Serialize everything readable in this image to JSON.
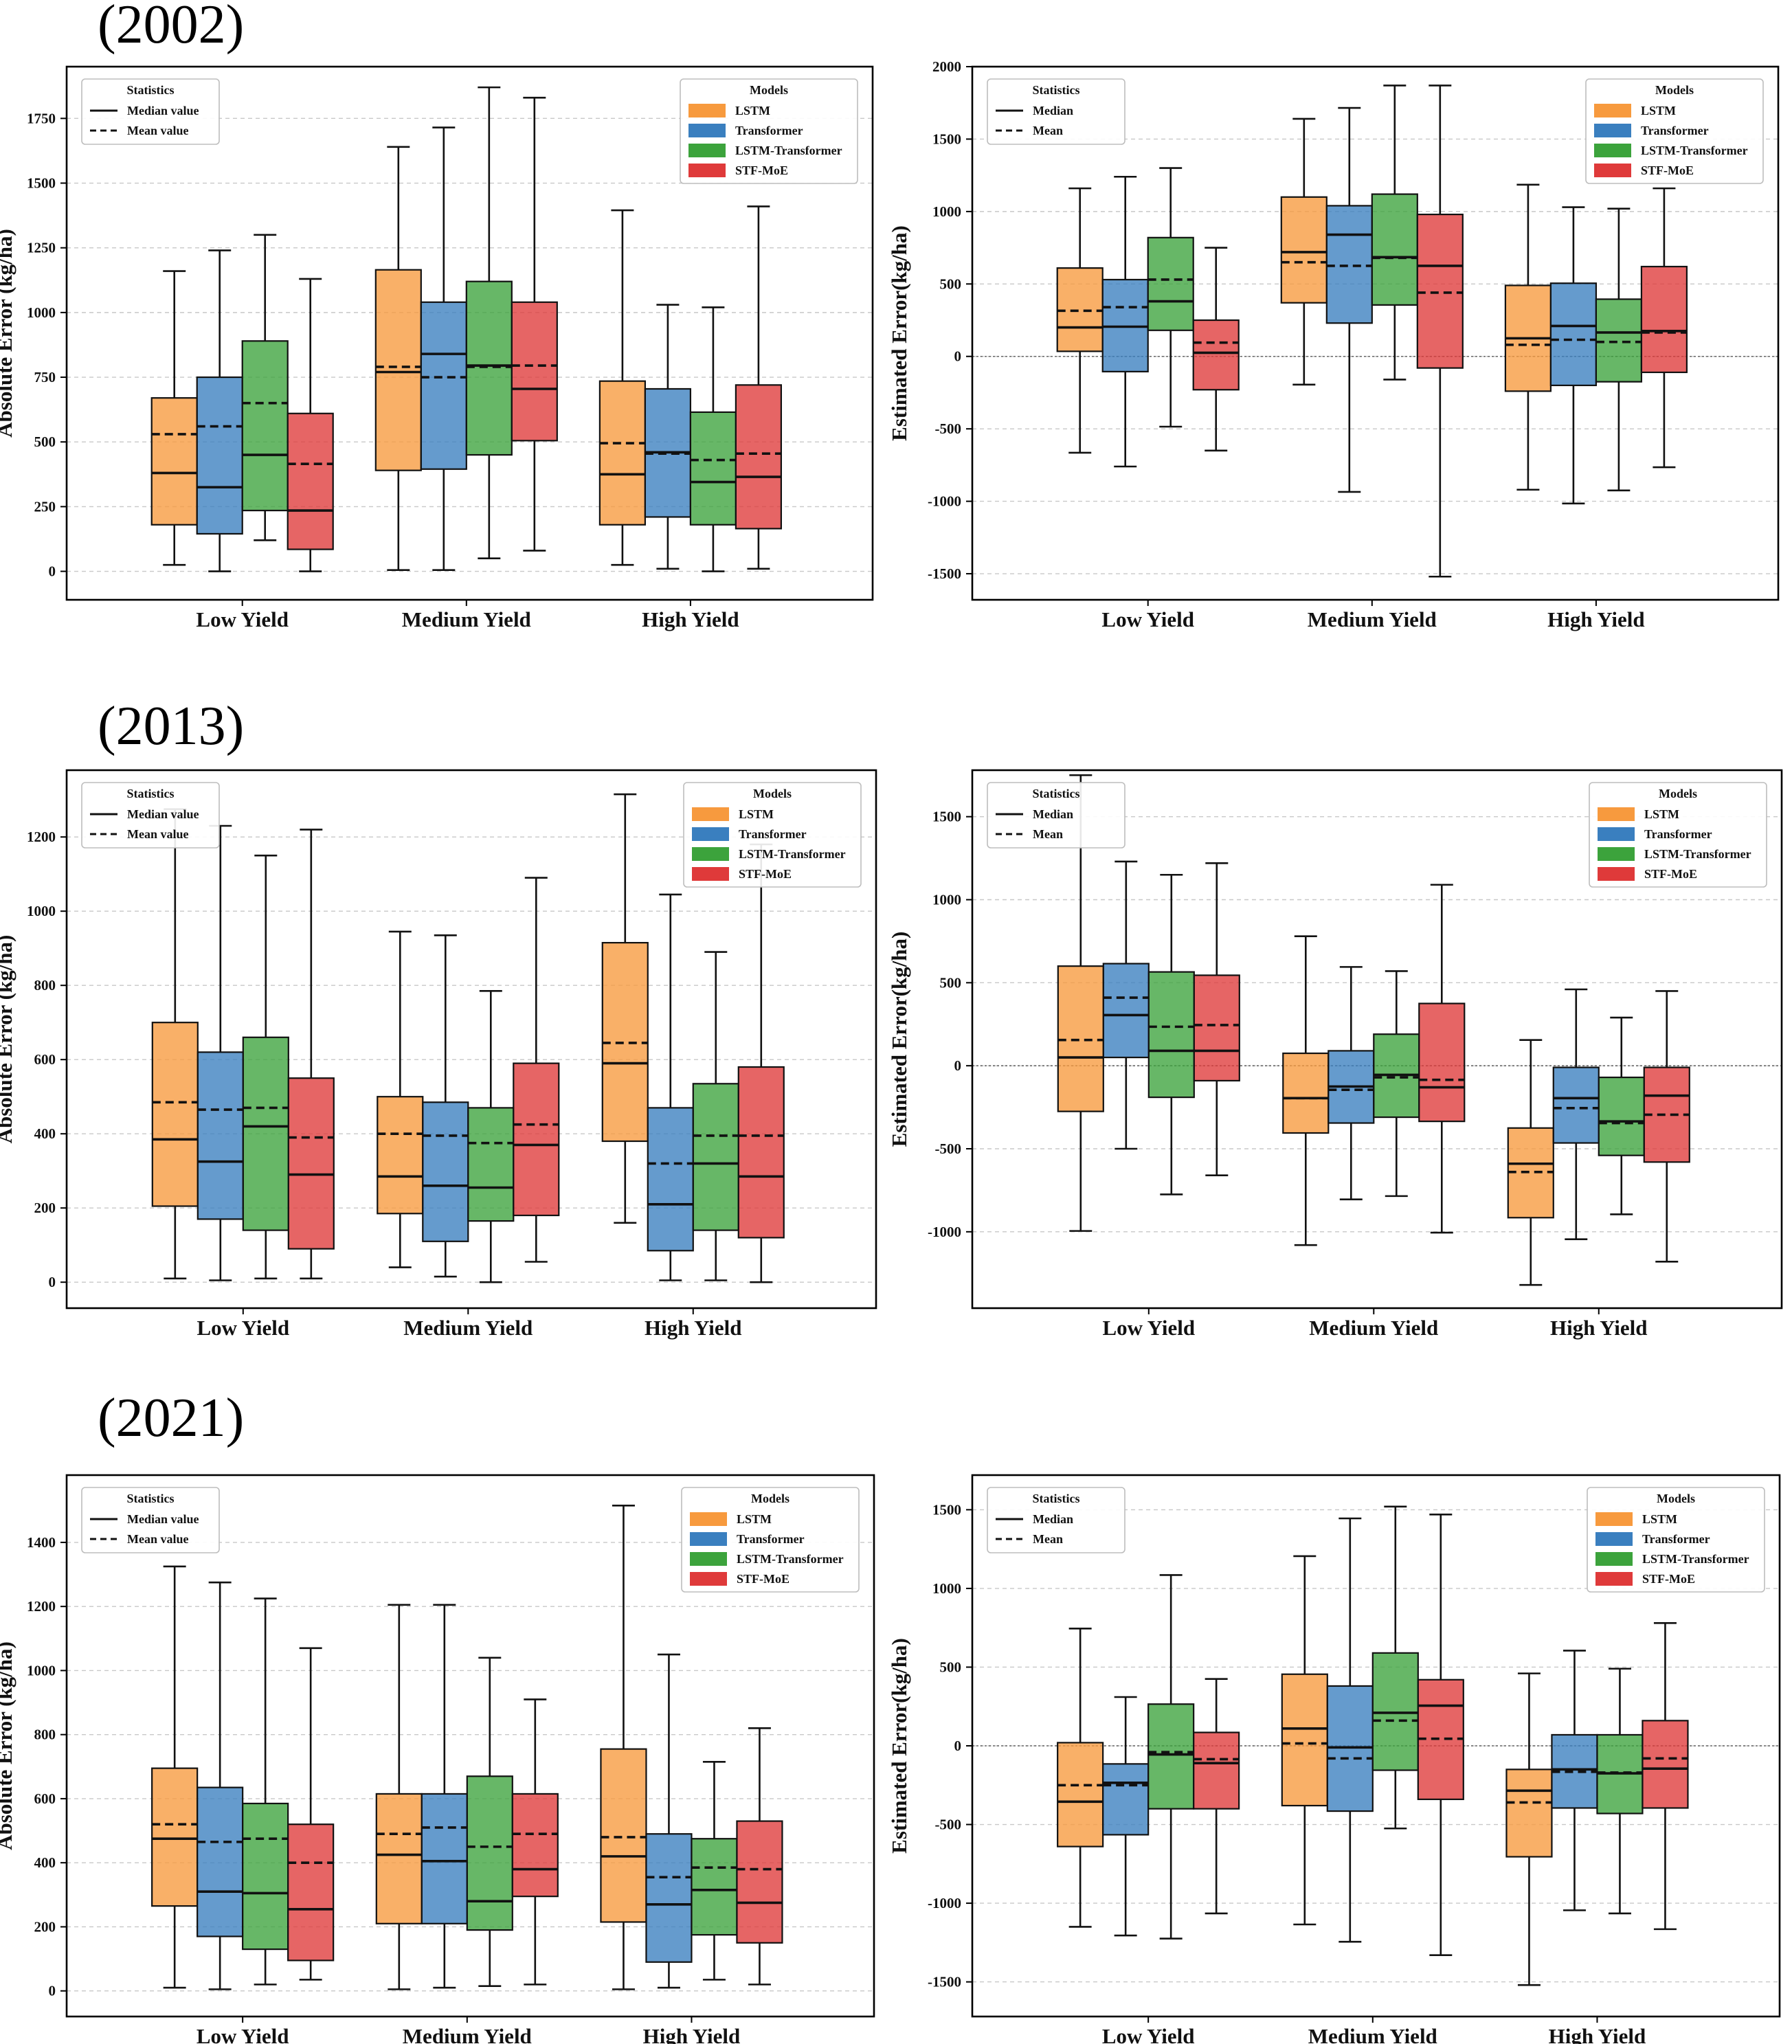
{
  "figure": {
    "legend_titles": {
      "statistics": "Statistics",
      "models": "Models"
    },
    "statistics_labels_abs": [
      "Median value",
      "Mean value"
    ],
    "statistics_labels_est": [
      "Median",
      "Mean"
    ],
    "colors": {
      "LSTM": "#f79a3e",
      "Transformer": "#3a7fbf",
      "LSTM-Transformer": "#3ca33c",
      "STF-MoE": "#df3a3a"
    },
    "models": [
      "LSTM",
      "Transformer",
      "LSTM-Transformer",
      "STF-MoE"
    ],
    "categories": [
      "Low Yield",
      "Medium Yield",
      "High Yield"
    ]
  },
  "years": [
    "(2002)",
    "(2013)",
    "(2021)"
  ],
  "chart_data": [
    {
      "type": "box",
      "year": "(2002)",
      "ylabel": "Absolute Error (kg/ha)",
      "ylim": [
        -110,
        1950
      ],
      "yticks": [
        0,
        250,
        500,
        750,
        1000,
        1250,
        1500,
        1750
      ],
      "zero_line": false,
      "groups": [
        [
          {
            "model": "LSTM",
            "wlo": 25,
            "q1": 180,
            "med": 380,
            "q3": 670,
            "whi": 1160,
            "mean": 530
          },
          {
            "model": "Transformer",
            "wlo": 0,
            "q1": 145,
            "med": 325,
            "q3": 750,
            "whi": 1240,
            "mean": 560
          },
          {
            "model": "LSTM-Transformer",
            "wlo": 120,
            "q1": 235,
            "med": 450,
            "q3": 890,
            "whi": 1300,
            "mean": 650
          },
          {
            "model": "STF-MoE",
            "wlo": 0,
            "q1": 85,
            "med": 235,
            "q3": 610,
            "whi": 1130,
            "mean": 415
          }
        ],
        [
          {
            "model": "LSTM",
            "wlo": 5,
            "q1": 390,
            "med": 770,
            "q3": 1165,
            "whi": 1640,
            "mean": 790
          },
          {
            "model": "Transformer",
            "wlo": 5,
            "q1": 395,
            "med": 840,
            "q3": 1040,
            "whi": 1715,
            "mean": 750
          },
          {
            "model": "LSTM-Transformer",
            "wlo": 50,
            "q1": 450,
            "med": 795,
            "q3": 1120,
            "whi": 1870,
            "mean": 790
          },
          {
            "model": "STF-MoE",
            "wlo": 80,
            "q1": 505,
            "med": 705,
            "q3": 1040,
            "whi": 1830,
            "mean": 795
          }
        ],
        [
          {
            "model": "LSTM",
            "wlo": 25,
            "q1": 180,
            "med": 375,
            "q3": 735,
            "whi": 1395,
            "mean": 495
          },
          {
            "model": "Transformer",
            "wlo": 10,
            "q1": 210,
            "med": 460,
            "q3": 705,
            "whi": 1030,
            "mean": 455
          },
          {
            "model": "LSTM-Transformer",
            "wlo": 0,
            "q1": 180,
            "med": 345,
            "q3": 615,
            "whi": 1020,
            "mean": 430
          },
          {
            "model": "STF-MoE",
            "wlo": 10,
            "q1": 165,
            "med": 365,
            "q3": 720,
            "whi": 1410,
            "mean": 455
          }
        ]
      ]
    },
    {
      "type": "box",
      "year": "(2002)",
      "ylabel": "Estimated Error(kg/ha)",
      "ylim": [
        -1680,
        2000
      ],
      "yticks": [
        -1500,
        -1000,
        -500,
        0,
        500,
        1000,
        1500,
        2000
      ],
      "zero_line": true,
      "groups": [
        [
          {
            "model": "LSTM",
            "wlo": -665,
            "q1": 35,
            "med": 200,
            "q3": 610,
            "whi": 1160,
            "mean": 315
          },
          {
            "model": "Transformer",
            "wlo": -760,
            "q1": -105,
            "med": 205,
            "q3": 530,
            "whi": 1240,
            "mean": 340
          },
          {
            "model": "LSTM-Transformer",
            "wlo": -485,
            "q1": 180,
            "med": 380,
            "q3": 820,
            "whi": 1300,
            "mean": 530
          },
          {
            "model": "STF-MoE",
            "wlo": -650,
            "q1": -230,
            "med": 25,
            "q3": 250,
            "whi": 750,
            "mean": 95
          }
        ],
        [
          {
            "model": "LSTM",
            "wlo": -195,
            "q1": 370,
            "med": 720,
            "q3": 1100,
            "whi": 1640,
            "mean": 650
          },
          {
            "model": "Transformer",
            "wlo": -935,
            "q1": 230,
            "med": 840,
            "q3": 1040,
            "whi": 1715,
            "mean": 625
          },
          {
            "model": "LSTM-Transformer",
            "wlo": -160,
            "q1": 355,
            "med": 685,
            "q3": 1120,
            "whi": 1870,
            "mean": 680
          },
          {
            "model": "STF-MoE",
            "wlo": -1520,
            "q1": -80,
            "med": 625,
            "q3": 980,
            "whi": 1870,
            "mean": 440
          }
        ],
        [
          {
            "model": "LSTM",
            "wlo": -920,
            "q1": -240,
            "med": 125,
            "q3": 490,
            "whi": 1185,
            "mean": 80
          },
          {
            "model": "Transformer",
            "wlo": -1015,
            "q1": -200,
            "med": 210,
            "q3": 505,
            "whi": 1030,
            "mean": 115
          },
          {
            "model": "LSTM-Transformer",
            "wlo": -925,
            "q1": -175,
            "med": 165,
            "q3": 395,
            "whi": 1020,
            "mean": 100
          },
          {
            "model": "STF-MoE",
            "wlo": -765,
            "q1": -110,
            "med": 175,
            "q3": 620,
            "whi": 1160,
            "mean": 165
          }
        ]
      ]
    },
    {
      "type": "box",
      "year": "(2013)",
      "ylabel": "Absolute Error (kg/ha)",
      "ylim": [
        -70,
        1380
      ],
      "yticks": [
        0,
        200,
        400,
        600,
        800,
        1000,
        1200
      ],
      "zero_line": false,
      "groups": [
        [
          {
            "model": "LSTM",
            "wlo": 10,
            "q1": 205,
            "med": 385,
            "q3": 700,
            "whi": 1275,
            "mean": 485
          },
          {
            "model": "Transformer",
            "wlo": 5,
            "q1": 170,
            "med": 325,
            "q3": 620,
            "whi": 1230,
            "mean": 465
          },
          {
            "model": "LSTM-Transformer",
            "wlo": 10,
            "q1": 140,
            "med": 420,
            "q3": 660,
            "whi": 1150,
            "mean": 470
          },
          {
            "model": "STF-MoE",
            "wlo": 10,
            "q1": 90,
            "med": 290,
            "q3": 550,
            "whi": 1220,
            "mean": 390
          }
        ],
        [
          {
            "model": "LSTM",
            "wlo": 40,
            "q1": 185,
            "med": 285,
            "q3": 500,
            "whi": 945,
            "mean": 400
          },
          {
            "model": "Transformer",
            "wlo": 15,
            "q1": 110,
            "med": 260,
            "q3": 485,
            "whi": 935,
            "mean": 395
          },
          {
            "model": "LSTM-Transformer",
            "wlo": 0,
            "q1": 165,
            "med": 255,
            "q3": 470,
            "whi": 785,
            "mean": 375
          },
          {
            "model": "STF-MoE",
            "wlo": 55,
            "q1": 180,
            "med": 370,
            "q3": 590,
            "whi": 1090,
            "mean": 425
          }
        ],
        [
          {
            "model": "LSTM",
            "wlo": 160,
            "q1": 380,
            "med": 590,
            "q3": 915,
            "whi": 1315,
            "mean": 645
          },
          {
            "model": "Transformer",
            "wlo": 5,
            "q1": 85,
            "med": 210,
            "q3": 470,
            "whi": 1045,
            "mean": 320
          },
          {
            "model": "LSTM-Transformer",
            "wlo": 5,
            "q1": 140,
            "med": 320,
            "q3": 535,
            "whi": 890,
            "mean": 395
          },
          {
            "model": "STF-MoE",
            "wlo": 0,
            "q1": 120,
            "med": 285,
            "q3": 580,
            "whi": 1180,
            "mean": 395
          }
        ]
      ]
    },
    {
      "type": "box",
      "year": "(2013)",
      "ylabel": "Estimated Error(kg/ha)",
      "ylim": [
        -1460,
        1780
      ],
      "yticks": [
        -1000,
        -500,
        0,
        500,
        1000,
        1500
      ],
      "zero_line": true,
      "groups": [
        [
          {
            "model": "LSTM",
            "wlo": -995,
            "q1": -275,
            "med": 50,
            "q3": 600,
            "whi": 1750,
            "mean": 155
          },
          {
            "model": "Transformer",
            "wlo": -500,
            "q1": 50,
            "med": 305,
            "q3": 615,
            "whi": 1230,
            "mean": 410
          },
          {
            "model": "LSTM-Transformer",
            "wlo": -775,
            "q1": -190,
            "med": 90,
            "q3": 565,
            "whi": 1150,
            "mean": 235
          },
          {
            "model": "STF-MoE",
            "wlo": -660,
            "q1": -90,
            "med": 90,
            "q3": 545,
            "whi": 1220,
            "mean": 245
          }
        ],
        [
          {
            "model": "LSTM",
            "wlo": -1080,
            "q1": -405,
            "med": -195,
            "q3": 75,
            "whi": 780,
            "mean": -195
          },
          {
            "model": "Transformer",
            "wlo": -805,
            "q1": -345,
            "med": -125,
            "q3": 90,
            "whi": 595,
            "mean": -145
          },
          {
            "model": "LSTM-Transformer",
            "wlo": -785,
            "q1": -310,
            "med": -55,
            "q3": 190,
            "whi": 570,
            "mean": -70
          },
          {
            "model": "STF-MoE",
            "wlo": -1005,
            "q1": -335,
            "med": -130,
            "q3": 375,
            "whi": 1090,
            "mean": -85
          }
        ],
        [
          {
            "model": "LSTM",
            "wlo": -1320,
            "q1": -915,
            "med": -590,
            "q3": -375,
            "whi": 155,
            "mean": -640
          },
          {
            "model": "Transformer",
            "wlo": -1045,
            "q1": -465,
            "med": -195,
            "q3": -10,
            "whi": 460,
            "mean": -255
          },
          {
            "model": "LSTM-Transformer",
            "wlo": -895,
            "q1": -540,
            "med": -335,
            "q3": -70,
            "whi": 290,
            "mean": -345
          },
          {
            "model": "STF-MoE",
            "wlo": -1180,
            "q1": -580,
            "med": -180,
            "q3": -10,
            "whi": 450,
            "mean": -295
          }
        ]
      ]
    },
    {
      "type": "box",
      "year": "(2021)",
      "ylabel": "Absolute Error (kg/ha)",
      "ylim": [
        -80,
        1610
      ],
      "yticks": [
        0,
        200,
        400,
        600,
        800,
        1000,
        1200,
        1400
      ],
      "zero_line": false,
      "groups": [
        [
          {
            "model": "LSTM",
            "wlo": 10,
            "q1": 265,
            "med": 475,
            "q3": 695,
            "whi": 1325,
            "mean": 520
          },
          {
            "model": "Transformer",
            "wlo": 5,
            "q1": 170,
            "med": 310,
            "q3": 635,
            "whi": 1275,
            "mean": 465
          },
          {
            "model": "LSTM-Transformer",
            "wlo": 20,
            "q1": 130,
            "med": 305,
            "q3": 585,
            "whi": 1225,
            "mean": 475
          },
          {
            "model": "STF-MoE",
            "wlo": 35,
            "q1": 95,
            "med": 255,
            "q3": 520,
            "whi": 1070,
            "mean": 400
          }
        ],
        [
          {
            "model": "LSTM",
            "wlo": 5,
            "q1": 210,
            "med": 425,
            "q3": 615,
            "whi": 1205,
            "mean": 490
          },
          {
            "model": "Transformer",
            "wlo": 10,
            "q1": 210,
            "med": 405,
            "q3": 615,
            "whi": 1205,
            "mean": 510
          },
          {
            "model": "LSTM-Transformer",
            "wlo": 15,
            "q1": 190,
            "med": 280,
            "q3": 670,
            "whi": 1040,
            "mean": 450
          },
          {
            "model": "STF-MoE",
            "wlo": 20,
            "q1": 295,
            "med": 380,
            "q3": 615,
            "whi": 910,
            "mean": 490
          }
        ],
        [
          {
            "model": "LSTM",
            "wlo": 5,
            "q1": 215,
            "med": 420,
            "q3": 755,
            "whi": 1515,
            "mean": 480
          },
          {
            "model": "Transformer",
            "wlo": 10,
            "q1": 90,
            "med": 270,
            "q3": 490,
            "whi": 1050,
            "mean": 355
          },
          {
            "model": "LSTM-Transformer",
            "wlo": 35,
            "q1": 175,
            "med": 315,
            "q3": 475,
            "whi": 715,
            "mean": 385
          },
          {
            "model": "STF-MoE",
            "wlo": 20,
            "q1": 150,
            "med": 275,
            "q3": 530,
            "whi": 820,
            "mean": 380
          }
        ]
      ]
    },
    {
      "type": "box",
      "year": "(2021)",
      "ylabel": "Estimated Error(kg/ha)",
      "ylim": [
        -1720,
        1720
      ],
      "yticks": [
        -1500,
        -1000,
        -500,
        0,
        500,
        1000,
        1500
      ],
      "zero_line": true,
      "groups": [
        [
          {
            "model": "LSTM",
            "wlo": -1150,
            "q1": -640,
            "med": -355,
            "q3": 20,
            "whi": 745,
            "mean": -250
          },
          {
            "model": "Transformer",
            "wlo": -1205,
            "q1": -565,
            "med": -235,
            "q3": -115,
            "whi": 310,
            "mean": -250
          },
          {
            "model": "LSTM-Transformer",
            "wlo": -1225,
            "q1": -400,
            "med": -55,
            "q3": 265,
            "whi": 1085,
            "mean": -40
          },
          {
            "model": "STF-MoE",
            "wlo": -1065,
            "q1": -400,
            "med": -110,
            "q3": 85,
            "whi": 425,
            "mean": -85
          }
        ],
        [
          {
            "model": "LSTM",
            "wlo": -1135,
            "q1": -380,
            "med": 110,
            "q3": 455,
            "whi": 1205,
            "mean": 15
          },
          {
            "model": "Transformer",
            "wlo": -1245,
            "q1": -415,
            "med": -10,
            "q3": 380,
            "whi": 1445,
            "mean": -80
          },
          {
            "model": "LSTM-Transformer",
            "wlo": -525,
            "q1": -155,
            "med": 210,
            "q3": 590,
            "whi": 1520,
            "mean": 160
          },
          {
            "model": "STF-MoE",
            "wlo": -1330,
            "q1": -340,
            "med": 255,
            "q3": 420,
            "whi": 1470,
            "mean": 45
          }
        ],
        [
          {
            "model": "LSTM",
            "wlo": -1520,
            "q1": -705,
            "med": -285,
            "q3": -150,
            "whi": 460,
            "mean": -360
          },
          {
            "model": "Transformer",
            "wlo": -1045,
            "q1": -395,
            "med": -150,
            "q3": 70,
            "whi": 605,
            "mean": -165
          },
          {
            "model": "LSTM-Transformer",
            "wlo": -1065,
            "q1": -430,
            "med": -175,
            "q3": 70,
            "whi": 490,
            "mean": -170
          },
          {
            "model": "STF-MoE",
            "wlo": -1165,
            "q1": -395,
            "med": -145,
            "q3": 160,
            "whi": 780,
            "mean": -80
          }
        ]
      ]
    }
  ]
}
